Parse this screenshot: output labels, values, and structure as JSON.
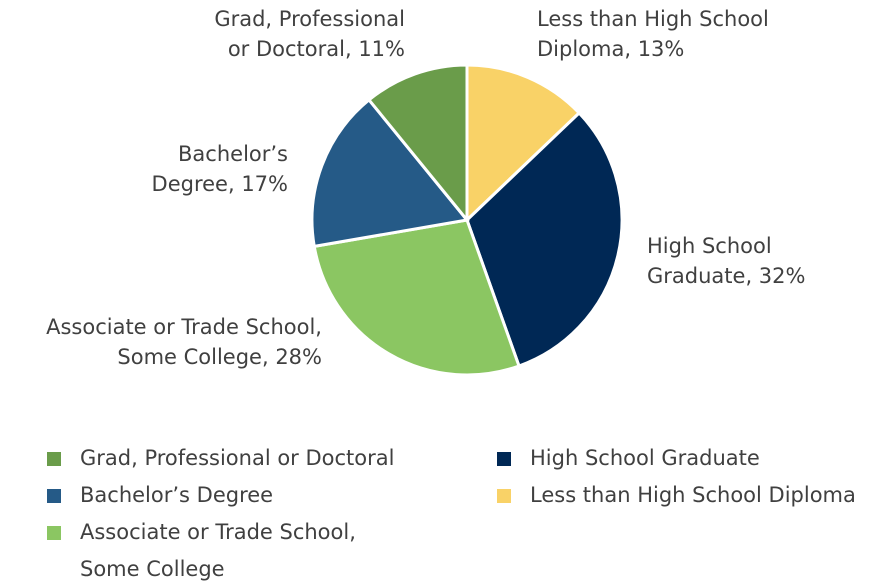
{
  "chart_data": {
    "type": "pie",
    "categories": [
      "Less than High School Diploma",
      "High School Graduate",
      "Associate or Trade School, Some College",
      "Bachelor’s Degree",
      "Grad, Professional or Doctoral"
    ],
    "values": [
      13,
      32,
      28,
      17,
      11
    ],
    "value_labels": [
      [
        "Less than High School",
        "Diploma, 13%"
      ],
      [
        "High School",
        "Graduate, 32%"
      ],
      [
        "Associate or Trade School,",
        "Some College, 28%"
      ],
      [
        "Bachelor’s",
        "Degree, 17%"
      ],
      [
        "Grad, Professional",
        "or Doctoral, 11%"
      ]
    ],
    "colors": [
      "#f9d267",
      "#002855",
      "#8bc662",
      "#255a87",
      "#6a9c4a"
    ],
    "legend": "bottom"
  }
}
